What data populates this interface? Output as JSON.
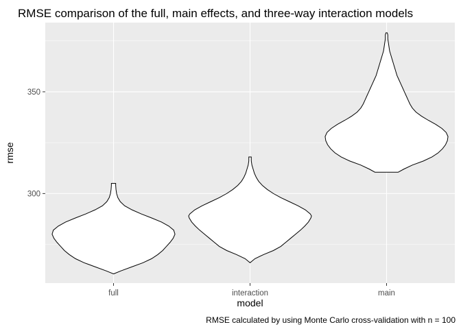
{
  "chart_data": {
    "type": "violin",
    "title": "RMSE comparison of the full, main effects, and three-way interaction models",
    "xlabel": "model",
    "ylabel": "rmse",
    "caption": "RMSE calculated by using Monte Carlo cross-validation with n = 100",
    "categories": [
      "full",
      "interaction",
      "main"
    ],
    "ylim": [
      256,
      384
    ],
    "yticks": [
      300,
      350
    ],
    "grid": true,
    "series": [
      {
        "category": "full",
        "profile": [
          [
            260.5,
            0.0
          ],
          [
            262,
            0.12
          ],
          [
            264,
            0.3
          ],
          [
            266,
            0.48
          ],
          [
            268,
            0.62
          ],
          [
            270,
            0.72
          ],
          [
            272,
            0.8
          ],
          [
            274,
            0.86
          ],
          [
            276,
            0.92
          ],
          [
            278,
            0.97
          ],
          [
            280,
            1.0
          ],
          [
            282,
            0.98
          ],
          [
            284,
            0.9
          ],
          [
            286,
            0.78
          ],
          [
            288,
            0.62
          ],
          [
            290,
            0.45
          ],
          [
            292,
            0.3
          ],
          [
            294,
            0.18
          ],
          [
            296,
            0.11
          ],
          [
            298,
            0.07
          ],
          [
            300,
            0.05
          ],
          [
            302,
            0.04
          ],
          [
            304,
            0.035
          ],
          [
            305,
            0.035
          ]
        ]
      },
      {
        "category": "interaction",
        "profile": [
          [
            266,
            0.0
          ],
          [
            268,
            0.08
          ],
          [
            270,
            0.22
          ],
          [
            272,
            0.38
          ],
          [
            274,
            0.5
          ],
          [
            276,
            0.58
          ],
          [
            278,
            0.66
          ],
          [
            280,
            0.74
          ],
          [
            282,
            0.82
          ],
          [
            284,
            0.89
          ],
          [
            286,
            0.95
          ],
          [
            288,
            0.99
          ],
          [
            289,
            1.0
          ],
          [
            290,
            0.98
          ],
          [
            292,
            0.9
          ],
          [
            294,
            0.78
          ],
          [
            296,
            0.64
          ],
          [
            298,
            0.5
          ],
          [
            300,
            0.38
          ],
          [
            302,
            0.28
          ],
          [
            304,
            0.2
          ],
          [
            306,
            0.14
          ],
          [
            308,
            0.1
          ],
          [
            310,
            0.07
          ],
          [
            312,
            0.05
          ],
          [
            314,
            0.03
          ],
          [
            316,
            0.02
          ],
          [
            318,
            0.02
          ]
        ]
      },
      {
        "category": "main",
        "profile": [
          [
            310.5,
            0.19
          ],
          [
            312,
            0.28
          ],
          [
            314,
            0.42
          ],
          [
            316,
            0.6
          ],
          [
            318,
            0.74
          ],
          [
            320,
            0.84
          ],
          [
            322,
            0.91
          ],
          [
            324,
            0.96
          ],
          [
            326,
            0.99
          ],
          [
            328,
            1.0
          ],
          [
            330,
            0.97
          ],
          [
            332,
            0.9
          ],
          [
            334,
            0.8
          ],
          [
            336,
            0.68
          ],
          [
            338,
            0.57
          ],
          [
            340,
            0.48
          ],
          [
            342,
            0.42
          ],
          [
            344,
            0.38
          ],
          [
            346,
            0.35
          ],
          [
            348,
            0.32
          ],
          [
            350,
            0.29
          ],
          [
            352,
            0.26
          ],
          [
            354,
            0.23
          ],
          [
            356,
            0.2
          ],
          [
            358,
            0.17
          ],
          [
            360,
            0.15
          ],
          [
            362,
            0.13
          ],
          [
            364,
            0.11
          ],
          [
            366,
            0.09
          ],
          [
            368,
            0.07
          ],
          [
            370,
            0.05
          ],
          [
            372,
            0.04
          ],
          [
            374,
            0.03
          ],
          [
            376,
            0.02
          ],
          [
            378,
            0.02
          ],
          [
            379,
            0.01
          ]
        ]
      }
    ]
  }
}
